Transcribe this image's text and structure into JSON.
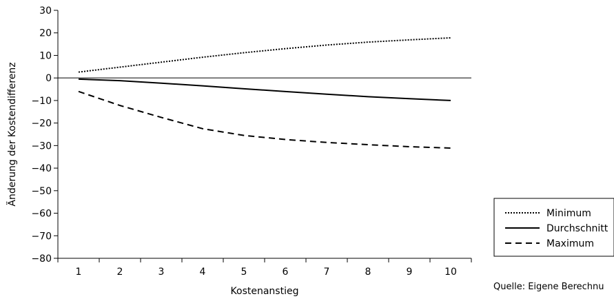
{
  "chart_data": {
    "type": "line",
    "title": "",
    "xlabel": "Kostenanstieg",
    "ylabel": "Änderung der Kostendifferenz",
    "x": [
      1,
      2,
      3,
      4,
      5,
      6,
      7,
      8,
      9,
      10
    ],
    "x_tick_labels": [
      "1",
      "2",
      "3",
      "4",
      "5",
      "6",
      "7",
      "8",
      "9",
      "10"
    ],
    "xlim": [
      0.5,
      10.5
    ],
    "ylim": [
      -80,
      30
    ],
    "y_ticks": [
      30,
      20,
      10,
      0,
      -10,
      -20,
      -30,
      -40,
      -50,
      -60,
      -70,
      -80
    ],
    "y_tick_labels": [
      "30",
      "20",
      "10",
      "0",
      "−10",
      "−20",
      "−30",
      "−40",
      "−50",
      "−60",
      "−70",
      "−80"
    ],
    "grid": false,
    "zero_line": true,
    "legend_position": "bottom-right, outside plot",
    "series": [
      {
        "name": "Minimum",
        "style": "dotted",
        "values": [
          2.6,
          4.8,
          7.0,
          9.2,
          11.2,
          13.0,
          14.6,
          15.9,
          16.9,
          17.8
        ]
      },
      {
        "name": "Durchschnitt",
        "style": "solid",
        "values": [
          -0.5,
          -1.2,
          -2.3,
          -3.5,
          -4.8,
          -6.0,
          -7.2,
          -8.3,
          -9.2,
          -10.0
        ]
      },
      {
        "name": "Maximum",
        "style": "dashed",
        "values": [
          -6.0,
          -12.2,
          -17.5,
          -22.5,
          -25.5,
          -27.3,
          -28.6,
          -29.6,
          -30.5,
          -31.1
        ]
      }
    ],
    "source_note": "Quelle: Eigene Berechnu"
  }
}
